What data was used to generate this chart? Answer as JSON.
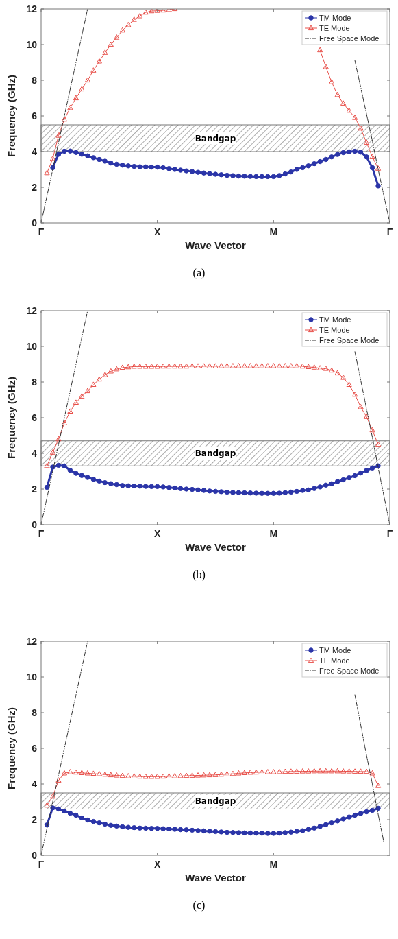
{
  "chart_data": [
    {
      "type": "line",
      "xlabel": "Wave Vector",
      "ylabel": "Frequency (GHz)",
      "annotations": [
        "(a)"
      ],
      "ylim": [
        0,
        12
      ],
      "categories": [
        "Γ",
        null,
        null,
        null,
        null,
        null,
        null,
        null,
        null,
        null,
        null,
        null,
        null,
        null,
        null,
        null,
        null,
        null,
        null,
        null,
        "X",
        null,
        null,
        null,
        null,
        null,
        null,
        null,
        null,
        null,
        null,
        null,
        null,
        null,
        null,
        null,
        null,
        null,
        null,
        null,
        "M",
        null,
        null,
        null,
        null,
        null,
        null,
        null,
        null,
        null,
        null,
        null,
        null,
        null,
        null,
        null,
        null,
        null,
        null,
        null,
        "Γ"
      ],
      "yticks": [
        0,
        2,
        4,
        6,
        8,
        10,
        12
      ],
      "legend": "top right",
      "grid": false,
      "bands": [
        {
          "axis": "y",
          "from": 4,
          "to": 5.5,
          "label": "Bandgap",
          "color": "#555555"
        }
      ],
      "series": [
        {
          "name": "TM Mode",
          "color": "#2b35a8",
          "marker": "circle",
          "line_style": "solid",
          "values": [
            null,
            null,
            3.1,
            3.85,
            4.02,
            4.03,
            3.95,
            3.85,
            3.76,
            3.66,
            3.56,
            3.46,
            3.36,
            3.29,
            3.24,
            3.2,
            3.17,
            3.15,
            3.14,
            3.13,
            3.13,
            3.1,
            3.05,
            3.0,
            2.96,
            2.92,
            2.88,
            2.84,
            2.8,
            2.76,
            2.73,
            2.7,
            2.67,
            2.65,
            2.63,
            2.62,
            2.61,
            2.6,
            2.6,
            2.6,
            2.6,
            2.66,
            2.75,
            2.86,
            3.0,
            3.1,
            3.2,
            3.32,
            3.44,
            3.56,
            3.7,
            3.84,
            3.94,
            3.99,
            4.02,
            3.97,
            3.7,
            3.1,
            2.08,
            null,
            null
          ]
        },
        {
          "name": "TE Mode",
          "color": "#e8504a",
          "marker": "triangle",
          "line_style": "solid",
          "values": [
            null,
            2.8,
            3.6,
            4.9,
            5.8,
            6.45,
            7.0,
            7.5,
            8.0,
            8.55,
            9.06,
            9.55,
            10.0,
            10.4,
            10.8,
            11.1,
            11.4,
            11.6,
            11.8,
            11.88,
            11.9,
            11.92,
            11.95,
            12.0,
            null,
            null,
            null,
            null,
            null,
            null,
            null,
            null,
            null,
            null,
            null,
            null,
            null,
            null,
            null,
            null,
            null,
            null,
            null,
            null,
            null,
            null,
            null,
            null,
            9.69,
            8.75,
            7.9,
            7.18,
            6.7,
            6.3,
            5.9,
            5.3,
            4.5,
            3.7,
            3.05,
            null,
            null
          ]
        },
        {
          "name": "Free Space Mode",
          "color": "#333333",
          "marker": "none",
          "line_style": "dashed",
          "values": [
            0,
            1.5,
            3,
            4.5,
            6,
            7.5,
            9,
            10.5,
            12,
            null,
            null,
            null,
            null,
            null,
            null,
            null,
            null,
            null,
            null,
            null,
            null,
            null,
            null,
            null,
            null,
            null,
            null,
            null,
            null,
            null,
            null,
            null,
            null,
            null,
            null,
            null,
            null,
            null,
            null,
            null,
            null,
            null,
            null,
            null,
            null,
            null,
            null,
            null,
            null,
            null,
            null,
            null,
            null,
            null,
            9.1,
            7.6,
            6.1,
            4.6,
            3.0,
            1.5,
            0
          ]
        }
      ]
    },
    {
      "type": "line",
      "xlabel": "Wave Vector",
      "ylabel": "Frequency (GHz)",
      "annotations": [
        "(b)"
      ],
      "ylim": [
        0,
        12
      ],
      "categories": [
        "Γ",
        null,
        null,
        null,
        null,
        null,
        null,
        null,
        null,
        null,
        null,
        null,
        null,
        null,
        null,
        null,
        null,
        null,
        null,
        null,
        "X",
        null,
        null,
        null,
        null,
        null,
        null,
        null,
        null,
        null,
        null,
        null,
        null,
        null,
        null,
        null,
        null,
        null,
        null,
        null,
        "M",
        null,
        null,
        null,
        null,
        null,
        null,
        null,
        null,
        null,
        null,
        null,
        null,
        null,
        null,
        null,
        null,
        null,
        null,
        null,
        "Γ"
      ],
      "yticks": [
        0,
        2,
        4,
        6,
        8,
        10,
        12
      ],
      "legend": "top right",
      "grid": false,
      "bands": [
        {
          "axis": "y",
          "from": 3.3,
          "to": 4.7,
          "label": "Bandgap",
          "color": "#555555"
        }
      ],
      "series": [
        {
          "name": "TM Mode",
          "color": "#2b35a8",
          "marker": "circle",
          "line_style": "solid",
          "values": [
            null,
            2.1,
            3.23,
            3.33,
            3.3,
            3.05,
            2.88,
            2.76,
            2.65,
            2.55,
            2.45,
            2.36,
            2.3,
            2.25,
            2.2,
            2.18,
            2.17,
            2.16,
            2.15,
            2.14,
            2.14,
            2.12,
            2.09,
            2.06,
            2.03,
            2.0,
            1.98,
            1.95,
            1.92,
            1.89,
            1.87,
            1.85,
            1.83,
            1.81,
            1.8,
            1.79,
            1.78,
            1.77,
            1.76,
            1.76,
            1.76,
            1.77,
            1.8,
            1.83,
            1.87,
            1.92,
            1.95,
            2.03,
            2.12,
            2.22,
            2.3,
            2.42,
            2.52,
            2.63,
            2.75,
            2.9,
            3.04,
            3.18,
            3.3,
            null,
            null
          ]
        },
        {
          "name": "TE Mode",
          "color": "#e8504a",
          "marker": "triangle",
          "line_style": "solid",
          "values": [
            null,
            3.3,
            4.05,
            4.8,
            5.7,
            6.35,
            6.85,
            7.2,
            7.5,
            7.85,
            8.15,
            8.4,
            8.6,
            8.72,
            8.81,
            8.84,
            8.87,
            8.87,
            8.87,
            8.87,
            8.87,
            8.88,
            8.88,
            8.88,
            8.88,
            8.88,
            8.89,
            8.89,
            8.89,
            8.89,
            8.89,
            8.9,
            8.9,
            8.9,
            8.9,
            8.9,
            8.9,
            8.9,
            8.9,
            8.9,
            8.9,
            8.9,
            8.9,
            8.9,
            8.9,
            8.88,
            8.85,
            8.82,
            8.78,
            8.75,
            8.65,
            8.5,
            8.25,
            7.85,
            7.3,
            6.6,
            6.05,
            5.3,
            4.5,
            null,
            null
          ]
        },
        {
          "name": "Free Space Mode",
          "color": "#333333",
          "marker": "none",
          "line_style": "dashed",
          "values": [
            0,
            1.5,
            3,
            4.5,
            6,
            7.5,
            9,
            10.5,
            12,
            null,
            null,
            null,
            null,
            null,
            null,
            null,
            null,
            null,
            null,
            null,
            null,
            null,
            null,
            null,
            null,
            null,
            null,
            null,
            null,
            null,
            null,
            null,
            null,
            null,
            null,
            null,
            null,
            null,
            null,
            null,
            null,
            null,
            null,
            null,
            null,
            null,
            null,
            null,
            null,
            null,
            null,
            null,
            null,
            null,
            9.7,
            8.1,
            6.5,
            4.9,
            3.2,
            1.6,
            0
          ]
        }
      ]
    },
    {
      "type": "line",
      "xlabel": "Wave Vector",
      "ylabel": "Frequency (GHz)",
      "annotations": [
        "(c)"
      ],
      "ylim": [
        0,
        12
      ],
      "categories": [
        "Γ",
        null,
        null,
        null,
        null,
        null,
        null,
        null,
        null,
        null,
        null,
        null,
        null,
        null,
        null,
        null,
        null,
        null,
        null,
        null,
        "X",
        null,
        null,
        null,
        null,
        null,
        null,
        null,
        null,
        null,
        null,
        null,
        null,
        null,
        null,
        null,
        null,
        null,
        null,
        null,
        "M",
        null,
        null,
        null,
        null,
        null,
        null,
        null,
        null,
        null,
        null,
        null,
        null,
        null,
        null,
        null,
        null,
        null,
        null,
        null,
        null
      ],
      "yticks": [
        0,
        2,
        4,
        6,
        8,
        10,
        12
      ],
      "legend": "top right",
      "grid": false,
      "bands": [
        {
          "axis": "y",
          "from": 2.6,
          "to": 3.5,
          "label": "Bandgap",
          "color": "#555555"
        }
      ],
      "series": [
        {
          "name": "TM Mode",
          "color": "#2b35a8",
          "marker": "circle",
          "line_style": "solid",
          "values": [
            null,
            1.7,
            2.66,
            2.6,
            2.48,
            2.36,
            2.25,
            2.1,
            1.98,
            1.9,
            1.82,
            1.75,
            1.68,
            1.64,
            1.6,
            1.57,
            1.55,
            1.53,
            1.52,
            1.51,
            1.51,
            1.49,
            1.48,
            1.46,
            1.44,
            1.43,
            1.41,
            1.39,
            1.37,
            1.35,
            1.33,
            1.31,
            1.29,
            1.28,
            1.27,
            1.26,
            1.25,
            1.24,
            1.24,
            1.23,
            1.23,
            1.24,
            1.27,
            1.3,
            1.34,
            1.38,
            1.45,
            1.53,
            1.62,
            1.72,
            1.82,
            1.93,
            2.04,
            2.15,
            2.25,
            2.35,
            2.44,
            2.52,
            2.64,
            null,
            null
          ]
        },
        {
          "name": "TE Mode",
          "color": "#e8504a",
          "marker": "triangle",
          "line_style": "solid",
          "values": [
            null,
            2.8,
            3.3,
            4.2,
            4.6,
            4.67,
            4.65,
            4.62,
            4.6,
            4.58,
            4.56,
            4.53,
            4.5,
            4.48,
            4.46,
            4.44,
            4.43,
            4.42,
            4.41,
            4.41,
            4.41,
            4.42,
            4.43,
            4.44,
            4.45,
            4.46,
            4.47,
            4.48,
            4.49,
            4.5,
            4.51,
            4.53,
            4.55,
            4.57,
            4.6,
            4.62,
            4.64,
            4.65,
            4.66,
            4.67,
            4.67,
            4.68,
            4.69,
            4.7,
            4.7,
            4.71,
            4.71,
            4.72,
            4.72,
            4.72,
            4.72,
            4.72,
            4.71,
            4.71,
            4.7,
            4.7,
            4.69,
            4.6,
            3.9,
            null,
            null
          ]
        },
        {
          "name": "Free Space Mode",
          "color": "#333333",
          "marker": "none",
          "line_style": "dashed",
          "values": [
            0,
            1.5,
            3,
            4.5,
            6,
            7.5,
            9,
            10.5,
            12,
            null,
            null,
            null,
            null,
            null,
            null,
            null,
            null,
            null,
            null,
            null,
            null,
            null,
            null,
            null,
            null,
            null,
            null,
            null,
            null,
            null,
            null,
            null,
            null,
            null,
            null,
            null,
            null,
            null,
            null,
            null,
            null,
            null,
            null,
            null,
            null,
            null,
            null,
            null,
            null,
            null,
            null,
            null,
            null,
            null,
            9,
            7.3,
            5.6,
            4.0,
            2.3,
            0.7,
            null
          ]
        }
      ]
    }
  ]
}
